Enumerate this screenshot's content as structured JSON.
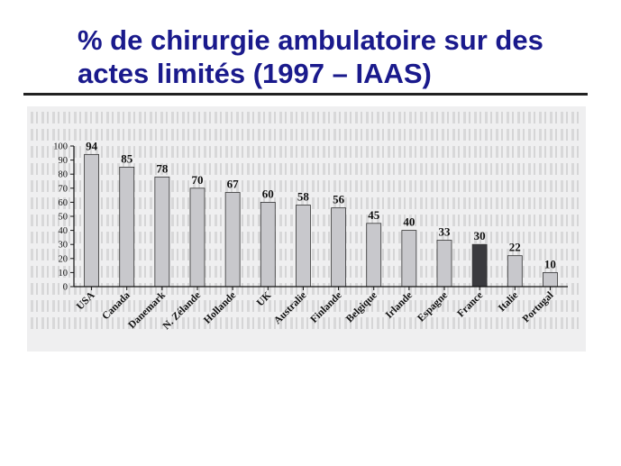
{
  "slide": {
    "title": "% de chirurgie ambulatoire sur des actes limités (1997 – IAAS)"
  },
  "chart_data": {
    "type": "bar",
    "title": "",
    "xlabel": "",
    "ylabel": "",
    "ylim": [
      0,
      100
    ],
    "yticks": [
      0,
      10,
      20,
      30,
      40,
      50,
      60,
      70,
      80,
      90,
      100
    ],
    "categories": [
      "USA",
      "Canada",
      "Danemark",
      "N. Zélande",
      "Hollande",
      "UK",
      "Australie",
      "Finlande",
      "Belgique",
      "Irlande",
      "Espagne",
      "France",
      "Italie",
      "Portugal"
    ],
    "values": [
      94,
      85,
      78,
      70,
      67,
      60,
      58,
      56,
      45,
      40,
      33,
      30,
      22,
      10
    ],
    "highlight": "France",
    "colors": {
      "bar": "#c8c8cc",
      "highlight": "#3a3a3e",
      "axis": "#111111"
    },
    "grid": false,
    "legend": "none"
  }
}
